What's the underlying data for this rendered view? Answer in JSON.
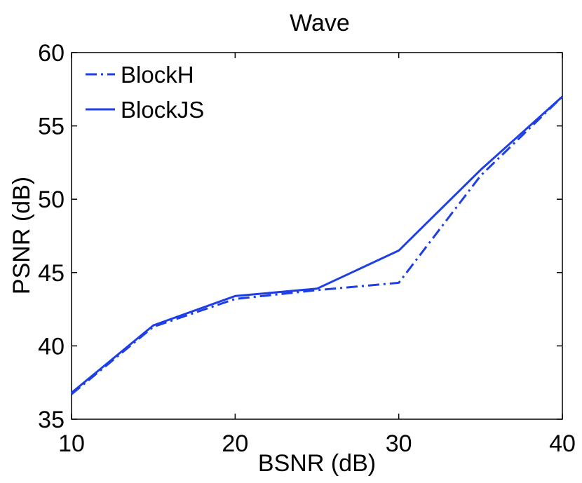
{
  "chart_data": {
    "type": "line",
    "title": "Wave",
    "xlabel": "BSNR (dB)",
    "ylabel": "PSNR (dB)",
    "xlim": [
      10,
      40
    ],
    "ylim": [
      35,
      60
    ],
    "xticks": [
      10,
      20,
      30,
      40
    ],
    "yticks": [
      35,
      40,
      45,
      50,
      55,
      60
    ],
    "grid": false,
    "legend_position": "top-left",
    "x": [
      10,
      15,
      20,
      25,
      30,
      35,
      40
    ],
    "series": [
      {
        "name": "BlockH",
        "style": "dashdot",
        "color": "#1f3fe6",
        "values": [
          36.7,
          41.3,
          43.2,
          43.8,
          44.3,
          51.6,
          57.0
        ]
      },
      {
        "name": "BlockJS",
        "style": "solid",
        "color": "#1f3fe6",
        "values": [
          36.8,
          41.4,
          43.4,
          43.9,
          46.5,
          52.0,
          57.0
        ]
      }
    ]
  }
}
